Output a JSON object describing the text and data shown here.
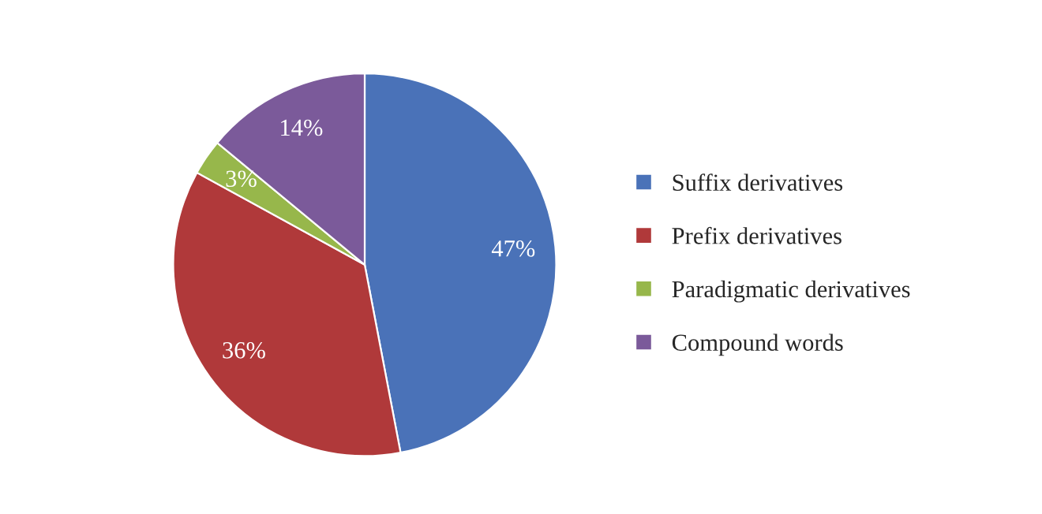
{
  "chart_data": {
    "type": "pie",
    "categories": [
      "Suffix derivatives",
      "Prefix derivatives",
      "Paradigmatic derivatives",
      "Compound words"
    ],
    "values": [
      47,
      36,
      3,
      14
    ],
    "value_labels": [
      "47%",
      "36%",
      "3%",
      "14%"
    ],
    "colors": [
      "#4a72b8",
      "#b0393a",
      "#97b74b",
      "#7b5a9a"
    ],
    "legend": "right"
  }
}
